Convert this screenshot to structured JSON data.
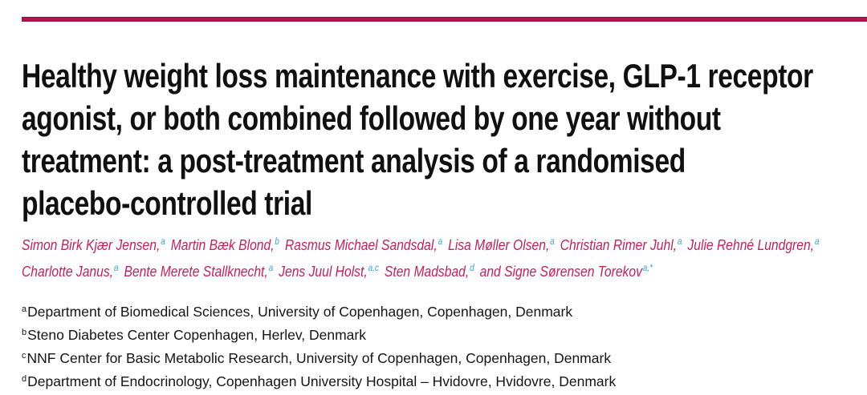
{
  "colors": {
    "rule_red": "#b0134e",
    "author_pink": "#c51e5b",
    "superscript_blue": "#38a3dc",
    "text_black": "#141414"
  },
  "title": {
    "lines": [
      "Healthy weight loss maintenance with exercise, GLP-1 receptor",
      "agonist, or both combined followed by one year without",
      "treatment: a post-treatment analysis of a randomised",
      "placebo-controlled trial"
    ]
  },
  "authors": {
    "items": [
      {
        "name": "Simon Birk Kjær Jensen,",
        "sup": "a"
      },
      {
        "name": "Martin Bæk Blond,",
        "sup": "b"
      },
      {
        "name": "Rasmus Michael Sandsdal,",
        "sup": "a"
      },
      {
        "name": "Lisa Møller Olsen,",
        "sup": "a"
      },
      {
        "name": "Christian Rimer Juhl,",
        "sup": "a"
      },
      {
        "name": "Julie Rehné Lundgren,",
        "sup": "a"
      },
      {
        "name": "Charlotte Janus,",
        "sup": "a"
      },
      {
        "name": "Bente Merete Stallknecht,",
        "sup": "a"
      },
      {
        "name": "Jens Juul Holst,",
        "sup": "a,c"
      },
      {
        "name": "Sten Madsbad,",
        "sup": "d"
      },
      {
        "name": "and Signe Sørensen Torekov",
        "sup": "a,*"
      }
    ]
  },
  "affiliations": [
    {
      "sup": "a",
      "text": "Department of Biomedical Sciences, University of Copenhagen, Copenhagen, Denmark"
    },
    {
      "sup": "b",
      "text": "Steno Diabetes Center Copenhagen, Herlev, Denmark"
    },
    {
      "sup": "c",
      "text": "NNF Center for Basic Metabolic Research, University of Copenhagen, Copenhagen, Denmark"
    },
    {
      "sup": "d",
      "text": "Department of Endocrinology, Copenhagen University Hospital – Hvidovre, Hvidovre, Denmark"
    }
  ]
}
